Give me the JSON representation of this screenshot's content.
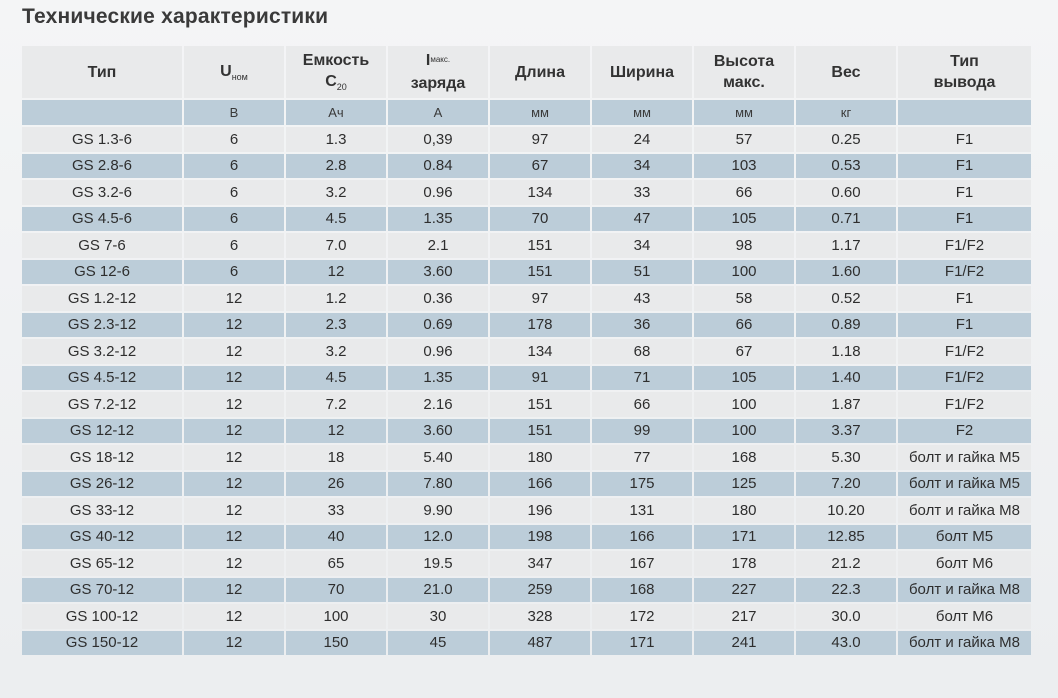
{
  "title": "Технические характеристики",
  "headers": {
    "type": "Тип",
    "voltage_main": "U",
    "voltage_sub": "ном",
    "capacity_line1": "Емкость",
    "capacity_main": "C",
    "capacity_sub": "20",
    "current_main": "I",
    "current_sub": "макс.",
    "current_line2": "заряда",
    "length": "Длина",
    "width": "Ширина",
    "height_line1": "Высота",
    "height_line2": "макс.",
    "weight": "Вес",
    "terminal_line1": "Тип",
    "terminal_line2": "вывода"
  },
  "units": {
    "type": "",
    "voltage": "В",
    "capacity": "Ач",
    "current": "А",
    "length": "мм",
    "width": "мм",
    "height": "мм",
    "weight": "кг",
    "terminal": ""
  },
  "rows": [
    {
      "type": "GS 1.3-6",
      "voltage": "6",
      "capacity": "1.3",
      "current": "0,39",
      "length": "97",
      "width": "24",
      "height": "57",
      "weight": "0.25",
      "terminal": "F1"
    },
    {
      "type": "GS 2.8-6",
      "voltage": "6",
      "capacity": "2.8",
      "current": "0.84",
      "length": "67",
      "width": "34",
      "height": "103",
      "weight": "0.53",
      "terminal": "F1"
    },
    {
      "type": "GS 3.2-6",
      "voltage": "6",
      "capacity": "3.2",
      "current": "0.96",
      "length": "134",
      "width": "33",
      "height": "66",
      "weight": "0.60",
      "terminal": "F1"
    },
    {
      "type": "GS 4.5-6",
      "voltage": "6",
      "capacity": "4.5",
      "current": "1.35",
      "length": "70",
      "width": "47",
      "height": "105",
      "weight": "0.71",
      "terminal": "F1"
    },
    {
      "type": "GS 7-6",
      "voltage": "6",
      "capacity": "7.0",
      "current": "2.1",
      "length": "151",
      "width": "34",
      "height": "98",
      "weight": "1.17",
      "terminal": "F1/F2"
    },
    {
      "type": "GS 12-6",
      "voltage": "6",
      "capacity": "12",
      "current": "3.60",
      "length": "151",
      "width": "51",
      "height": "100",
      "weight": "1.60",
      "terminal": "F1/F2"
    },
    {
      "type": "GS 1.2-12",
      "voltage": "12",
      "capacity": "1.2",
      "current": "0.36",
      "length": "97",
      "width": "43",
      "height": "58",
      "weight": "0.52",
      "terminal": "F1"
    },
    {
      "type": "GS 2.3-12",
      "voltage": "12",
      "capacity": "2.3",
      "current": "0.69",
      "length": "178",
      "width": "36",
      "height": "66",
      "weight": "0.89",
      "terminal": "F1"
    },
    {
      "type": "GS 3.2-12",
      "voltage": "12",
      "capacity": "3.2",
      "current": "0.96",
      "length": "134",
      "width": "68",
      "height": "67",
      "weight": "1.18",
      "terminal": "F1/F2"
    },
    {
      "type": "GS 4.5-12",
      "voltage": "12",
      "capacity": "4.5",
      "current": "1.35",
      "length": "91",
      "width": "71",
      "height": "105",
      "weight": "1.40",
      "terminal": "F1/F2"
    },
    {
      "type": "GS 7.2-12",
      "voltage": "12",
      "capacity": "7.2",
      "current": "2.16",
      "length": "151",
      "width": "66",
      "height": "100",
      "weight": "1.87",
      "terminal": "F1/F2"
    },
    {
      "type": "GS 12-12",
      "voltage": "12",
      "capacity": "12",
      "current": "3.60",
      "length": "151",
      "width": "99",
      "height": "100",
      "weight": "3.37",
      "terminal": "F2"
    },
    {
      "type": "GS 18-12",
      "voltage": "12",
      "capacity": "18",
      "current": "5.40",
      "length": "180",
      "width": "77",
      "height": "168",
      "weight": "5.30",
      "terminal": "болт и гайка М5"
    },
    {
      "type": "GS 26-12",
      "voltage": "12",
      "capacity": "26",
      "current": "7.80",
      "length": "166",
      "width": "175",
      "height": "125",
      "weight": "7.20",
      "terminal": "болт и гайка М5"
    },
    {
      "type": "GS 33-12",
      "voltage": "12",
      "capacity": "33",
      "current": "9.90",
      "length": "196",
      "width": "131",
      "height": "180",
      "weight": "10.20",
      "terminal": "болт и гайка М8"
    },
    {
      "type": "GS 40-12",
      "voltage": "12",
      "capacity": "40",
      "current": "12.0",
      "length": "198",
      "width": "166",
      "height": "171",
      "weight": "12.85",
      "terminal": "болт  М5"
    },
    {
      "type": "GS 65-12",
      "voltage": "12",
      "capacity": "65",
      "current": "19.5",
      "length": "347",
      "width": "167",
      "height": "178",
      "weight": "21.2",
      "terminal": "болт  М6"
    },
    {
      "type": "GS 70-12",
      "voltage": "12",
      "capacity": "70",
      "current": "21.0",
      "length": "259",
      "width": "168",
      "height": "227",
      "weight": "22.3",
      "terminal": "болт и гайка М8"
    },
    {
      "type": "GS 100-12",
      "voltage": "12",
      "capacity": "100",
      "current": "30",
      "length": "328",
      "width": "172",
      "height": "217",
      "weight": "30.0",
      "terminal": "болт М6"
    },
    {
      "type": "GS 150-12",
      "voltage": "12",
      "capacity": "150",
      "current": "45",
      "length": "487",
      "width": "171",
      "height": "241",
      "weight": "43.0",
      "terminal": "болт и гайка М8"
    }
  ]
}
